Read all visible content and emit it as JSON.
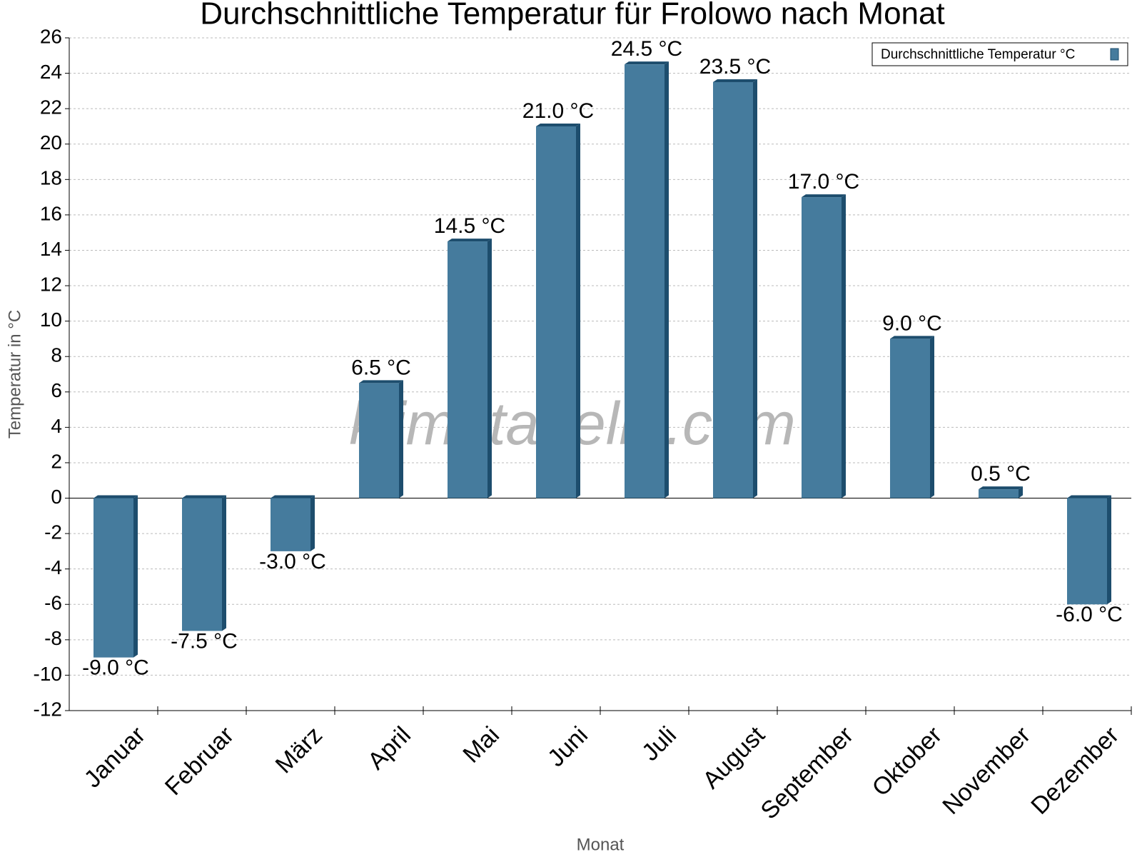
{
  "chart_data": {
    "type": "bar",
    "title": "Durchschnittliche Temperatur für Frolowo nach Monat",
    "x_label": "Monat",
    "y_label": "Temperatur in °C",
    "watermark": "klimatabelle.com",
    "categories": [
      "Januar",
      "Februar",
      "März",
      "April",
      "Mai",
      "Juni",
      "Juli",
      "August",
      "September",
      "Oktober",
      "November",
      "Dezember"
    ],
    "series": [
      {
        "name": "Durchschnittliche Temperatur °C",
        "color": "#457b9d",
        "values": [
          -9.0,
          -7.5,
          -3.0,
          6.5,
          14.5,
          21.0,
          24.5,
          23.5,
          17.0,
          9.0,
          0.5,
          -6.0
        ],
        "value_labels": [
          "-9.0 °C",
          "-7.5 °C",
          "-3.0 °C",
          "6.5 °C",
          "14.5 °C",
          "21.0 °C",
          "24.5 °C",
          "23.5 °C",
          "17.0 °C",
          "9.0 °C",
          "0.5 °C",
          "-6.0 °C"
        ]
      }
    ],
    "ylim": [
      -12,
      26
    ],
    "yticks": [
      -12,
      -10,
      -8,
      -6,
      -4,
      -2,
      0,
      2,
      4,
      6,
      8,
      10,
      12,
      14,
      16,
      18,
      20,
      22,
      24,
      26
    ],
    "grid": true,
    "legend": "top-right"
  }
}
